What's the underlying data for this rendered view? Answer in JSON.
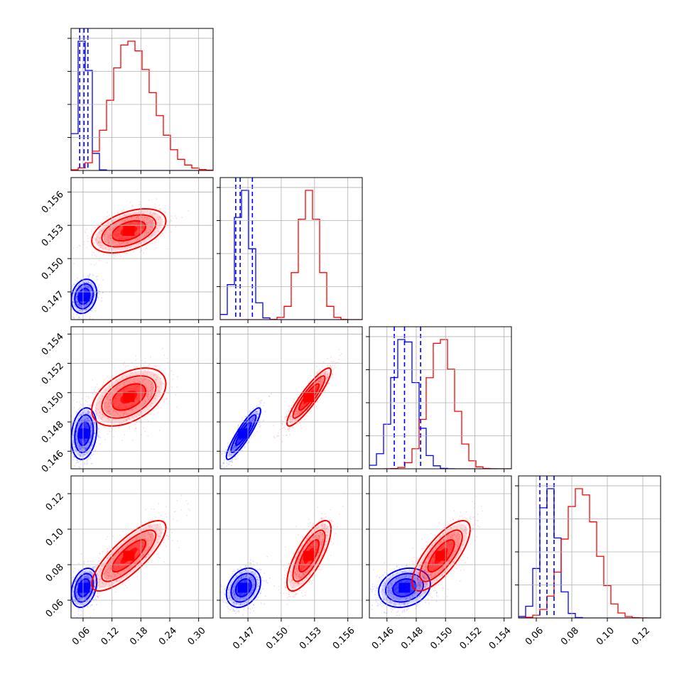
{
  "chart_data": {
    "type": "corner",
    "grid": true,
    "colors": {
      "a": "#0000ff",
      "b": "#ff0000"
    },
    "series": [
      {
        "key": "a",
        "mean": [
          0.062,
          0.1466,
          0.1472,
          0.067
        ],
        "std": [
          0.012,
          0.0007,
          0.0008,
          0.005
        ],
        "corr": [
          [
            1,
            0.2,
            0.2,
            0.3
          ],
          [
            0.2,
            1,
            0.9,
            0.3
          ],
          [
            0.2,
            0.9,
            1,
            0.2
          ],
          [
            0.3,
            0.3,
            0.2,
            1
          ]
        ]
      },
      {
        "key": "b",
        "mean": [
          0.155,
          0.1525,
          0.1497,
          0.085
        ],
        "std": [
          0.035,
          0.0009,
          0.0009,
          0.009
        ],
        "corr": [
          [
            1,
            0.45,
            0.45,
            0.8
          ],
          [
            0.45,
            1,
            0.9,
            0.75
          ],
          [
            0.45,
            0.9,
            1,
            0.75
          ],
          [
            0.8,
            0.75,
            0.75,
            1
          ]
        ]
      }
    ],
    "quantiles": [
      [
        0.053,
        0.062,
        0.07
      ],
      [
        0.1459,
        0.1463,
        0.1474
      ],
      [
        0.1465,
        0.1472,
        0.1483
      ],
      [
        0.062,
        0.066,
        0.07
      ]
    ],
    "params": [
      {
        "range": [
          0.035,
          0.33
        ],
        "ticks": [
          0.06,
          0.12,
          0.18,
          0.24,
          0.3
        ],
        "ticklabels": [
          "0.06",
          "0.12",
          "0.18",
          "0.24",
          "0.30"
        ]
      },
      {
        "range": [
          0.1445,
          0.1573
        ],
        "ticks": [
          0.147,
          0.15,
          0.153,
          0.156
        ],
        "ticklabels": [
          "0.147",
          "0.150",
          "0.153",
          "0.156"
        ]
      },
      {
        "range": [
          0.1448,
          0.1545
        ],
        "ticks": [
          0.146,
          0.148,
          0.15,
          0.152,
          0.154
        ],
        "ticklabels": [
          "0.146",
          "0.148",
          "0.150",
          "0.152",
          "0.154"
        ]
      },
      {
        "range": [
          0.05,
          0.13
        ],
        "ticks": [
          0.06,
          0.08,
          0.1,
          0.12
        ],
        "ticklabels": [
          "0.06",
          "0.08",
          "0.10",
          "0.12"
        ]
      }
    ]
  }
}
